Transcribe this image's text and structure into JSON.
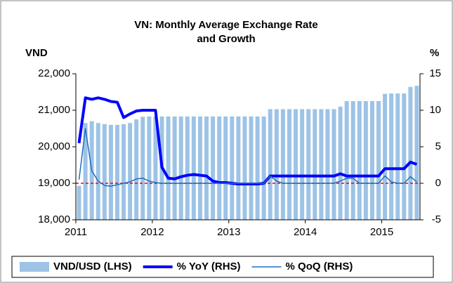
{
  "chart_data": {
    "type": "bar-line",
    "title": [
      "VN: Monthly Average Exchange Rate",
      "and Growth"
    ],
    "y_label": "VND",
    "y2_label": "%",
    "categories": [
      "2011",
      null,
      null,
      null,
      null,
      null,
      null,
      null,
      null,
      null,
      null,
      null,
      "2012",
      null,
      null,
      null,
      null,
      null,
      null,
      null,
      null,
      null,
      null,
      null,
      "2013",
      null,
      null,
      null,
      null,
      null,
      null,
      null,
      null,
      null,
      null,
      null,
      "2014",
      null,
      null,
      null,
      null,
      null,
      null,
      null,
      null,
      null,
      null,
      null,
      "2015",
      null,
      null,
      null,
      null,
      null
    ],
    "series": [
      {
        "name": "VND/USD (LHS)",
        "color": "#9dc3e6",
        "kind": "bar",
        "axis": "y",
        "values": [
          18930,
          20650,
          20700,
          20650,
          20620,
          20600,
          20600,
          20620,
          20650,
          20750,
          20820,
          20830,
          20830,
          20830,
          20830,
          20830,
          20830,
          20830,
          20830,
          20830,
          20830,
          20830,
          20830,
          20830,
          20830,
          20830,
          20830,
          20830,
          20830,
          20830,
          21030,
          21030,
          21030,
          21030,
          21030,
          21030,
          21030,
          21030,
          21030,
          21030,
          21030,
          21100,
          21250,
          21250,
          21250,
          21250,
          21250,
          21250,
          21450,
          21460,
          21460,
          21460,
          21640,
          21670
        ]
      },
      {
        "name": "% YoY (RHS)",
        "color": "#0000ff",
        "kind": "line",
        "width": 4,
        "axis": "y2",
        "values": [
          5.5,
          11.7,
          11.5,
          11.7,
          11.5,
          11.2,
          11.1,
          9.0,
          9.5,
          9.9,
          10.0,
          10.0,
          10.0,
          2.2,
          0.7,
          0.6,
          0.9,
          1.1,
          1.2,
          1.1,
          1.0,
          0.3,
          0.1,
          0.1,
          0.0,
          -0.1,
          -0.1,
          -0.1,
          -0.1,
          0.0,
          1.0,
          1.0,
          1.0,
          1.0,
          1.0,
          1.0,
          1.0,
          1.0,
          1.0,
          1.0,
          1.0,
          1.3,
          1.0,
          1.0,
          1.0,
          1.0,
          1.0,
          1.0,
          2.0,
          2.0,
          2.0,
          2.0,
          2.9,
          2.6
        ]
      },
      {
        "name": "% QoQ (RHS)",
        "color": "#1f6fc0",
        "kind": "line",
        "width": 1.5,
        "axis": "y2",
        "values": [
          0.5,
          7.5,
          1.7,
          0.3,
          -0.3,
          -0.4,
          -0.2,
          0.0,
          0.2,
          0.6,
          0.7,
          0.3,
          0.1,
          0.0,
          0.0,
          0.0,
          0.0,
          0.0,
          0.0,
          0.0,
          0.0,
          0.0,
          0.0,
          0.0,
          0.0,
          0.0,
          0.0,
          0.0,
          0.0,
          0.0,
          1.0,
          0.3,
          0.0,
          0.0,
          0.0,
          0.0,
          0.0,
          0.0,
          0.0,
          0.0,
          0.0,
          0.3,
          0.7,
          0.7,
          0.0,
          0.0,
          0.0,
          0.0,
          1.0,
          0.2,
          0.0,
          0.0,
          0.9,
          0.2
        ]
      }
    ],
    "ylim": [
      18000,
      22000
    ],
    "yticks": [
      {
        "value": 18000,
        "label": "18,000"
      },
      {
        "value": 19000,
        "label": "19,000"
      },
      {
        "value": 20000,
        "label": "20,000"
      },
      {
        "value": 21000,
        "label": "21,000"
      },
      {
        "value": 22000,
        "label": "22,000"
      }
    ],
    "y2lim": [
      -5,
      15
    ],
    "y2ticks": [
      -5,
      0,
      5,
      10,
      15
    ],
    "zero_line_color": "#ff0000",
    "legend": "bottom"
  }
}
